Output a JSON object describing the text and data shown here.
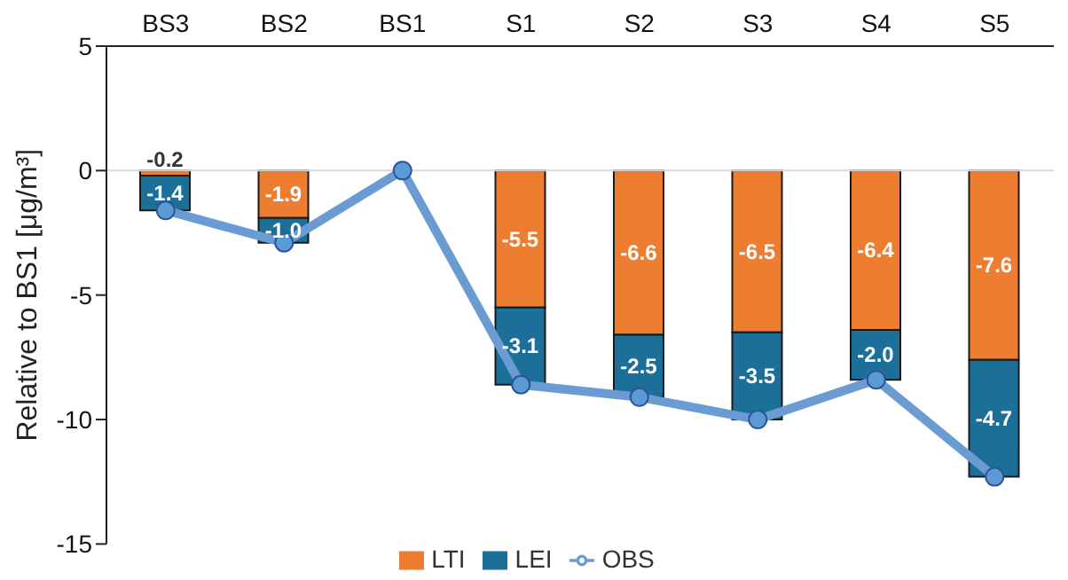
{
  "chart_data": {
    "type": "bar",
    "stacked": true,
    "ylabel": "Relative to BS1 [μg/m³]",
    "categories": [
      "BS3",
      "BS2",
      "BS1",
      "S1",
      "S2",
      "S3",
      "S4",
      "S5"
    ],
    "series": [
      {
        "name": "LTI",
        "color": "#ed7d31",
        "values": [
          -0.2,
          -1.9,
          null,
          -5.5,
          -6.6,
          -6.5,
          -6.4,
          -7.6
        ],
        "value_labels": [
          "-0.2",
          "-1.9",
          null,
          "-5.5",
          "-6.6",
          "-6.5",
          "-6.4",
          "-7.6"
        ]
      },
      {
        "name": "LEI",
        "color": "#1b6f99",
        "values": [
          -1.4,
          -1.0,
          null,
          -3.1,
          -2.5,
          -3.5,
          -2.0,
          -4.7
        ],
        "value_labels": [
          "-1.4",
          "-1.0",
          null,
          "-3.1",
          "-2.5",
          "-3.5",
          "-2.0",
          "-4.7"
        ]
      },
      {
        "name": "OBS",
        "type": "line",
        "color": "#6a9bd3",
        "marker": "circle",
        "values": [
          -1.6,
          -2.9,
          0,
          -8.6,
          -9.1,
          -10.0,
          -8.4,
          -12.3
        ]
      }
    ],
    "ylim": [
      -15,
      5
    ],
    "yticks": [
      -15,
      -10,
      -5,
      0,
      5
    ],
    "ref_lines": [
      {
        "axis": "y",
        "value": 0,
        "color": "#d9d9d9"
      }
    ],
    "legend": "bottom"
  }
}
